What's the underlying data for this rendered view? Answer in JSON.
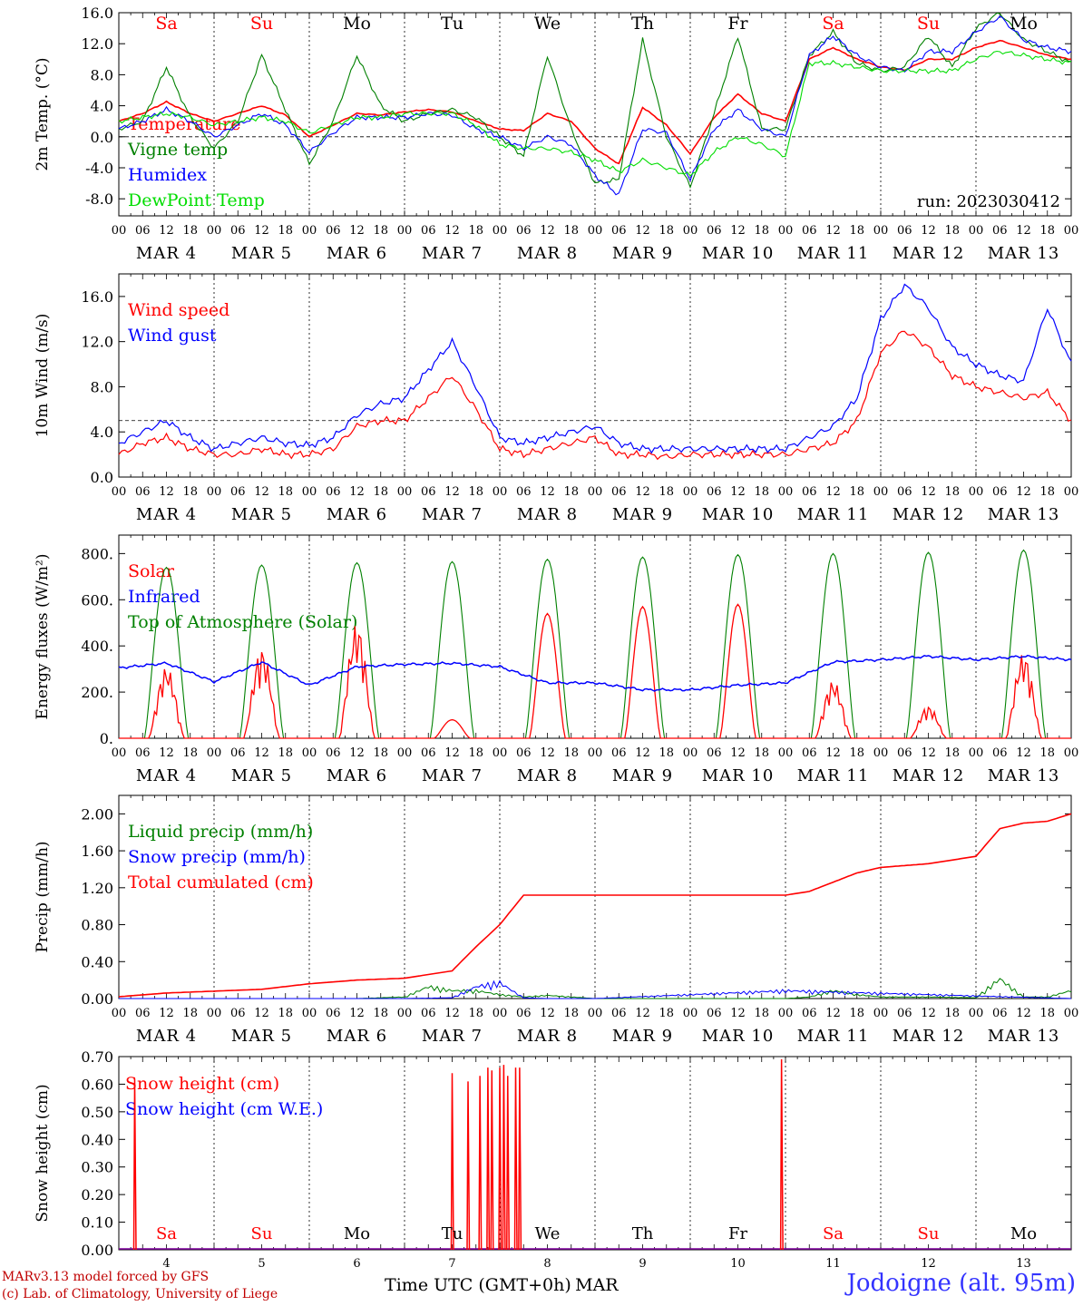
{
  "run_label": "run: 2023030412",
  "days": [
    "4",
    "5",
    "6",
    "7",
    "8",
    "9",
    "10",
    "11",
    "12",
    "13"
  ],
  "month": "MAR",
  "day_names": [
    "Sa",
    "Su",
    "Mo",
    "Tu",
    "We",
    "Th",
    "Fr",
    "Sa",
    "Su",
    "Mo"
  ],
  "hour_ticks": [
    "00",
    "06",
    "12",
    "18"
  ],
  "xlabel": "Time UTC (GMT+0h)",
  "location": "Jodoigne (alt. 95m)",
  "credit_line1": "MARv3.13 model forced by GFS",
  "credit_line2": "(c) Lab. of Climatology, University of Liege",
  "colors": {
    "red": "#ff0000",
    "green": "#008000",
    "blue": "#0000ff",
    "lime": "#00dd00",
    "text": "#000000"
  },
  "chart_data": [
    {
      "type": "line",
      "ylabel": "2m Temp. (°C)",
      "ylim": [
        -10.2,
        16.0
      ],
      "yticks": [
        "-8.0",
        "-4.0",
        "0.0",
        "4.0",
        "8.0",
        "12.0",
        "16.0"
      ],
      "ref_line": 0,
      "x_hours": [
        0,
        6,
        12,
        18,
        24,
        30,
        36,
        42,
        48,
        54,
        60,
        66,
        72,
        78,
        84,
        90,
        96,
        102,
        108,
        114,
        120,
        126,
        132,
        138,
        144,
        150,
        156,
        162,
        168,
        174,
        180,
        186,
        192,
        198,
        204,
        210,
        216,
        222,
        228,
        234,
        240
      ],
      "series": [
        {
          "name": "Temperature",
          "color": "red",
          "values": [
            2.0,
            3.0,
            4.5,
            3.0,
            2.0,
            3.0,
            4.0,
            2.8,
            0.0,
            1.5,
            3.0,
            2.8,
            3.2,
            3.5,
            3.2,
            2.0,
            1.0,
            0.8,
            3.0,
            2.0,
            -1.5,
            -3.5,
            3.8,
            1.5,
            -2.2,
            2.5,
            5.5,
            3.0,
            2.0,
            10.0,
            11.5,
            10.0,
            9.0,
            8.6,
            10.0,
            10.0,
            11.5,
            12.4,
            11.5,
            10.5,
            10.0
          ]
        },
        {
          "name": "Vigne temp",
          "color": "green",
          "values": [
            1.0,
            2.0,
            9.0,
            2.5,
            -1.5,
            2.0,
            10.5,
            3.5,
            -3.5,
            2.0,
            10.5,
            4.0,
            2.0,
            3.0,
            3.5,
            2.5,
            0.0,
            -2.5,
            10.5,
            1.0,
            -6.0,
            -5.5,
            12.5,
            0.0,
            -6.5,
            3.0,
            13.0,
            1.0,
            1.0,
            10.5,
            13.5,
            9.5,
            8.5,
            9.0,
            13.0,
            9.0,
            14.0,
            16.0,
            12.5,
            11.0,
            9.5
          ]
        },
        {
          "name": "Humidex",
          "color": "blue",
          "values": [
            1.0,
            2.0,
            3.5,
            2.0,
            0.0,
            1.5,
            3.0,
            1.5,
            -2.0,
            0.5,
            2.5,
            2.5,
            2.5,
            3.0,
            2.8,
            1.0,
            0.0,
            -1.5,
            0.0,
            -1.0,
            -5.0,
            -7.5,
            1.0,
            0.5,
            -5.5,
            1.0,
            3.5,
            1.0,
            0.0,
            10.5,
            13.0,
            10.5,
            9.0,
            8.5,
            11.0,
            11.0,
            13.5,
            15.5,
            12.5,
            11.5,
            11.0
          ]
        },
        {
          "name": "DewPoint Temp",
          "color": "lime",
          "values": [
            2.0,
            2.5,
            3.0,
            2.5,
            1.5,
            2.0,
            2.5,
            2.0,
            0.5,
            1.5,
            2.5,
            2.5,
            3.0,
            3.0,
            3.0,
            1.5,
            -1.0,
            -1.5,
            -1.5,
            -2.0,
            -3.0,
            -4.5,
            -3.0,
            -4.0,
            -5.0,
            -2.0,
            0.0,
            -1.0,
            -2.5,
            9.5,
            9.5,
            9.0,
            8.5,
            8.5,
            8.5,
            8.5,
            10.0,
            11.0,
            10.5,
            10.0,
            9.5
          ]
        }
      ]
    },
    {
      "type": "line",
      "ylabel": "10m Wind (m/s)",
      "ylim": [
        0,
        18.0
      ],
      "yticks": [
        "0.0",
        "4.0",
        "8.0",
        "12.0",
        "16.0"
      ],
      "ref_line": 5,
      "x_hours": [
        0,
        6,
        12,
        18,
        24,
        30,
        36,
        42,
        48,
        54,
        60,
        66,
        72,
        78,
        84,
        90,
        96,
        102,
        108,
        114,
        120,
        126,
        132,
        138,
        144,
        150,
        156,
        162,
        168,
        174,
        180,
        186,
        192,
        198,
        204,
        210,
        216,
        222,
        228,
        234,
        240
      ],
      "series": [
        {
          "name": "Wind speed",
          "color": "red",
          "values": [
            2.0,
            3.0,
            3.5,
            2.5,
            2.0,
            2.0,
            2.5,
            2.0,
            2.0,
            2.5,
            4.5,
            5.0,
            5.0,
            7.0,
            9.0,
            6.0,
            2.5,
            2.0,
            2.5,
            3.0,
            3.5,
            2.0,
            2.0,
            1.8,
            2.0,
            2.0,
            2.0,
            2.0,
            2.0,
            2.5,
            3.0,
            5.0,
            11.0,
            13.0,
            11.5,
            9.0,
            8.0,
            7.5,
            7.0,
            7.5,
            5.0
          ]
        },
        {
          "name": "Wind gust",
          "color": "blue",
          "values": [
            3.0,
            4.0,
            5.0,
            3.5,
            2.5,
            3.0,
            3.5,
            3.0,
            2.8,
            3.5,
            5.5,
            6.5,
            7.0,
            9.5,
            12.0,
            8.0,
            3.5,
            3.0,
            3.5,
            4.0,
            4.5,
            3.0,
            2.5,
            2.5,
            2.5,
            2.5,
            2.5,
            2.5,
            2.5,
            3.5,
            4.5,
            7.0,
            14.0,
            17.0,
            15.0,
            11.5,
            10.0,
            9.0,
            8.5,
            15.0,
            10.0
          ]
        }
      ]
    },
    {
      "type": "line",
      "ylabel": "Energy fluxes (W/m²)",
      "ylim": [
        0,
        880
      ],
      "yticks": [
        "0.",
        "200.",
        "400.",
        "600.",
        "800."
      ],
      "series": [
        {
          "name": "Solar",
          "color": "red",
          "day_peaks": [
            310,
            390,
            500,
            80,
            540,
            570,
            580,
            250,
            140,
            370
          ]
        },
        {
          "name": "Infrared",
          "color": "blue",
          "x_hours": [
            0,
            12,
            24,
            36,
            48,
            60,
            72,
            84,
            96,
            108,
            120,
            132,
            144,
            156,
            168,
            180,
            192,
            204,
            216,
            228,
            240
          ],
          "values": [
            305,
            325,
            245,
            330,
            230,
            310,
            320,
            325,
            310,
            240,
            240,
            210,
            210,
            230,
            240,
            330,
            340,
            355,
            340,
            355,
            340
          ]
        },
        {
          "name": "Top of Atmosphere (Solar)",
          "color": "green",
          "day_peaks": [
            740,
            750,
            760,
            765,
            775,
            785,
            795,
            800,
            805,
            815
          ]
        }
      ]
    },
    {
      "type": "line",
      "ylabel": "Precip (mm/h)",
      "ylim": [
        0,
        2.2
      ],
      "yticks": [
        "0.00",
        "0.40",
        "0.80",
        "1.20",
        "1.60",
        "2.00"
      ],
      "series": [
        {
          "name": "Liquid precip (mm/h)",
          "color": "green",
          "x_hours": [
            0,
            60,
            66,
            72,
            78,
            84,
            90,
            96,
            102,
            108,
            114,
            120,
            168,
            174,
            180,
            186,
            192,
            204,
            216,
            222,
            228,
            234,
            240
          ],
          "values": [
            0,
            0,
            0.01,
            0.02,
            0.15,
            0.1,
            0.1,
            0.05,
            0.02,
            0.04,
            0.02,
            0,
            0,
            0.02,
            0.1,
            0.05,
            0.02,
            0.02,
            0.01,
            0.25,
            0.02,
            0.02,
            0.1
          ]
        },
        {
          "name": "Snow precip (mm/h)",
          "color": "blue",
          "x_hours": [
            0,
            72,
            84,
            90,
            96,
            102,
            108,
            120,
            168,
            240
          ],
          "values": [
            0,
            0,
            0.01,
            0.15,
            0.2,
            0.01,
            0,
            0,
            0.1,
            0
          ]
        },
        {
          "name": "Total cumulated (cm)",
          "color": "red",
          "x_hours": [
            0,
            12,
            24,
            36,
            48,
            60,
            72,
            78,
            84,
            90,
            96,
            102,
            108,
            120,
            132,
            144,
            156,
            168,
            174,
            180,
            186,
            192,
            204,
            216,
            222,
            228,
            234,
            240
          ],
          "values": [
            0.02,
            0.06,
            0.08,
            0.1,
            0.16,
            0.2,
            0.22,
            0.26,
            0.3,
            0.56,
            0.8,
            1.12,
            1.12,
            1.12,
            1.12,
            1.12,
            1.12,
            1.12,
            1.16,
            1.26,
            1.36,
            1.42,
            1.46,
            1.54,
            1.84,
            1.9,
            1.92,
            2.0
          ]
        }
      ]
    },
    {
      "type": "line",
      "ylabel": "Snow height (cm)",
      "ylim": [
        0,
        0.7
      ],
      "yticks": [
        "0.00",
        "0.10",
        "0.20",
        "0.30",
        "0.40",
        "0.50",
        "0.60",
        "0.70"
      ],
      "series": [
        {
          "name": "Snow height (cm)",
          "color": "red",
          "spikes": [
            [
              4,
              0.62
            ],
            [
              84,
              0.64
            ],
            [
              88,
              0.61
            ],
            [
              91,
              0.63
            ],
            [
              93,
              0.66
            ],
            [
              94,
              0.65
            ],
            [
              96,
              0.66
            ],
            [
              97,
              0.67
            ],
            [
              98,
              0.63
            ],
            [
              100,
              0.66
            ],
            [
              101,
              0.66
            ],
            [
              167,
              0.69
            ]
          ]
        },
        {
          "name": "Snow height (cm W.E.)",
          "color": "blue",
          "values": [
            0
          ]
        }
      ]
    }
  ]
}
